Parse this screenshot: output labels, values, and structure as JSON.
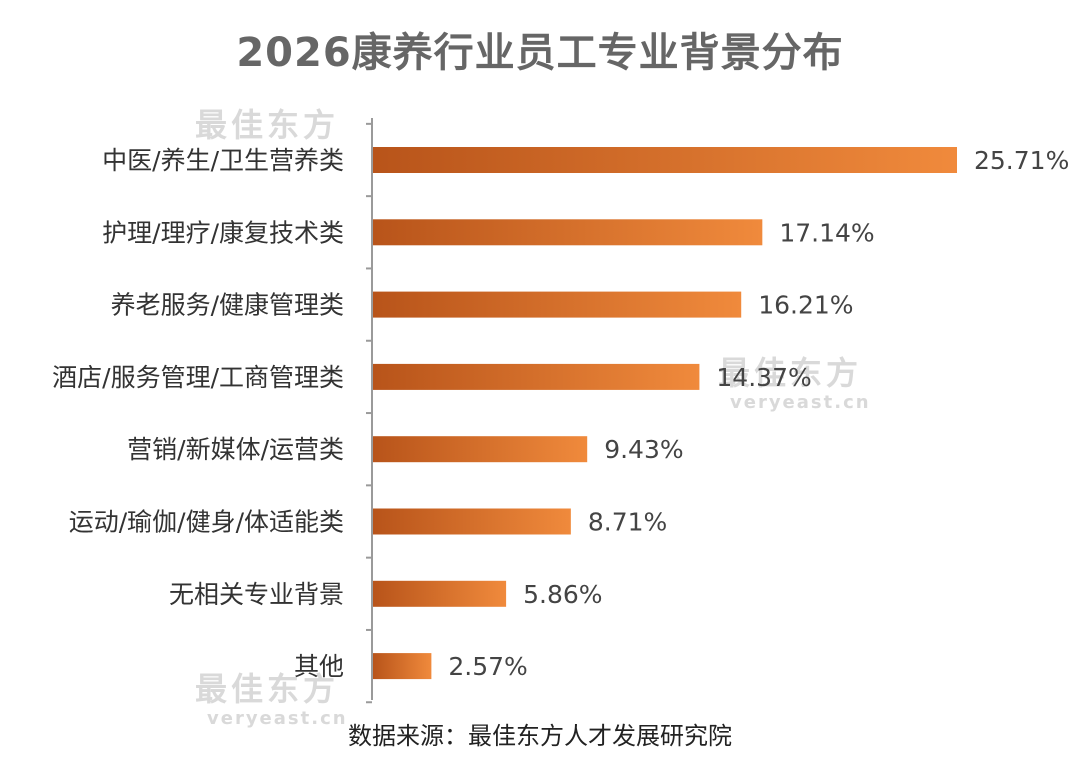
{
  "chart_data": {
    "type": "bar",
    "orientation": "horizontal",
    "title": "2026康养行业员工专业背景分布",
    "categories": [
      "中医/养生/卫生营养类",
      "护理/理疗/康复技术类",
      "养老服务/健康管理类",
      "酒店/服务管理/工商管理类",
      "营销/新媒体/运营类",
      "运动/瑜伽/健身/体适能类",
      "无相关专业背景",
      "其他"
    ],
    "values": [
      25.71,
      17.14,
      16.21,
      14.37,
      9.43,
      8.71,
      5.86,
      2.57
    ],
    "value_labels": [
      "25.71%",
      "17.14%",
      "16.21%",
      "14.37%",
      "9.43%",
      "8.71%",
      "5.86%",
      "2.57%"
    ],
    "xlim": [
      0,
      25.71
    ],
    "grid": false,
    "bar_color_start": "#b8541a",
    "bar_color_end": "#f08a3c"
  },
  "source_text": "数据来源：最佳东方人才发展研究院",
  "watermark": {
    "cn": "最佳东方",
    "en": "veryeast.cn"
  }
}
